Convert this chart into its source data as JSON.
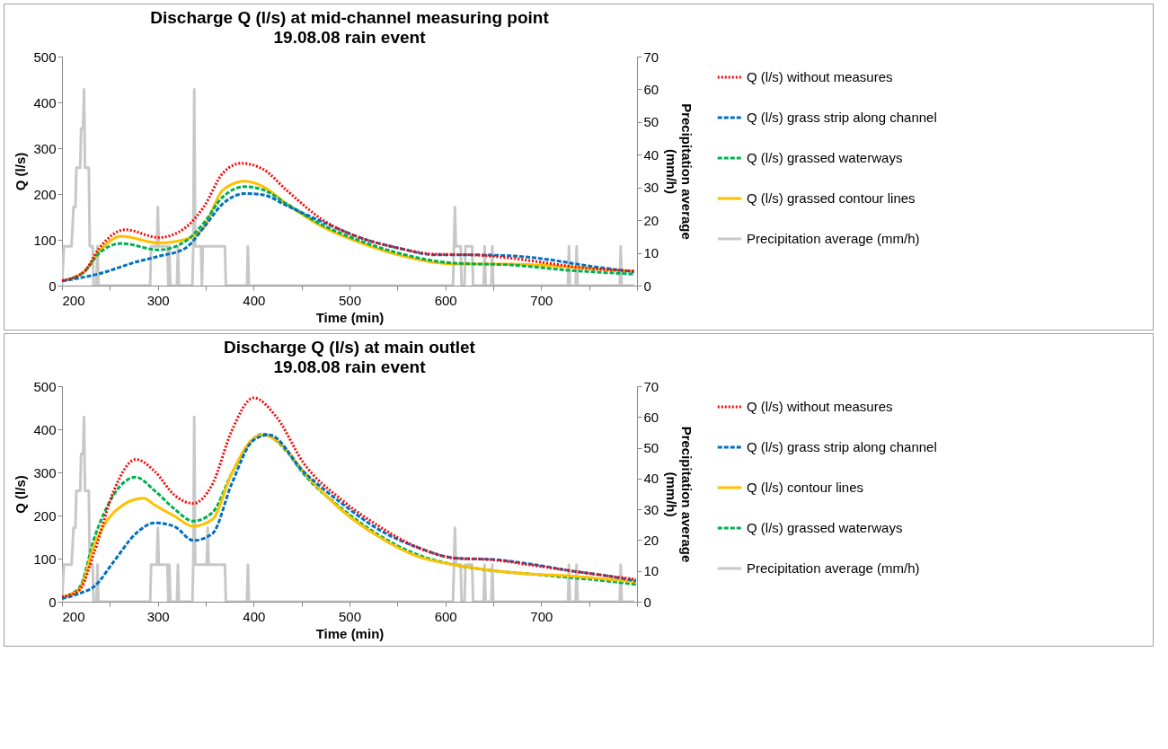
{
  "chart_data": [
    {
      "type": "line",
      "title": "Discharge Q (l/s) at mid-channel measuring point",
      "subtitle": "19.08.08 rain event",
      "xlabel": "Time (min)",
      "ylabel": "Q (l/s)",
      "y2label": "Precipitation average (mm/h)",
      "xlim": [
        200,
        800
      ],
      "xticks": [
        200,
        {
          "value": 250,
          "label": null
        },
        300,
        {
          "value": 350,
          "label": null
        },
        400,
        {
          "value": 450,
          "label": null
        },
        500,
        {
          "value": 550,
          "label": null
        },
        600,
        {
          "value": 650,
          "label": null
        },
        700,
        {
          "value": 750,
          "label": null
        },
        {
          "value": 800,
          "label": null
        }
      ],
      "ylim": [
        0,
        500
      ],
      "yticks": [
        0,
        100,
        200,
        300,
        400,
        500
      ],
      "y2lim": [
        0,
        70
      ],
      "y2ticks": [
        0,
        10,
        20,
        30,
        40,
        50,
        60,
        70
      ],
      "legend": "right",
      "grid": false,
      "series": [
        {
          "name": "Q (l/s) without measures",
          "color": "#ff0000",
          "line_style": "dotted",
          "x": [
            200,
            223,
            239,
            266,
            301,
            329,
            348,
            368,
            387,
            410,
            434,
            473,
            512,
            551,
            586,
            629,
            668,
            707,
            746,
            797
          ],
          "values": [
            11,
            30,
            82,
            122,
            105,
            127,
            172,
            246,
            267,
            254,
            209,
            142,
            104,
            82,
            69,
            67,
            60,
            49,
            38,
            32
          ]
        },
        {
          "name": "Q (l/s) grass strip along channel",
          "color": "#0070c0",
          "line_style": "dashed",
          "x": [
            200,
            239,
            278,
            301,
            329,
            348,
            368,
            391,
            410,
            434,
            473,
            512,
            551,
            590,
            629,
            668,
            707,
            746,
            797
          ],
          "values": [
            10,
            26,
            52,
            64,
            82,
            127,
            179,
            201,
            198,
            175,
            138,
            104,
            82,
            67,
            67,
            65,
            57,
            44,
            30
          ]
        },
        {
          "name": "Q (l/s) grassed waterways",
          "color": "#00b050",
          "line_style": "dashed",
          "x": [
            200,
            223,
            239,
            262,
            301,
            329,
            348,
            368,
            391,
            410,
            434,
            473,
            512,
            551,
            609,
            668,
            726,
            797
          ],
          "values": [
            10,
            30,
            71,
            92,
            78,
            97,
            137,
            194,
            216,
            209,
            179,
            131,
            97,
            71,
            49,
            45,
            34,
            25
          ]
        },
        {
          "name": "Q (l/s) grassed contour lines",
          "color": "#ffc000",
          "line_style": "solid",
          "x": [
            200,
            223,
            239,
            262,
            301,
            329,
            348,
            368,
            391,
            410,
            434,
            473,
            512,
            551,
            609,
            668,
            726,
            797
          ],
          "values": [
            10,
            30,
            75,
            108,
            93,
            101,
            127,
            209,
            228,
            216,
            179,
            127,
            93,
            67,
            47,
            47,
            41,
            31
          ]
        },
        {
          "name": "Precipitation average (mm/h)",
          "color": "#c8c8c8",
          "line_style": "solid",
          "axis": "y2",
          "x": [
            200,
            202,
            210,
            212,
            214,
            215,
            219,
            220,
            222,
            223,
            224,
            228,
            229,
            232,
            233,
            236,
            237,
            238,
            292,
            293,
            299,
            300,
            301,
            310,
            311,
            312,
            313,
            320,
            321,
            322,
            336,
            337,
            338,
            339,
            345,
            346,
            347,
            370,
            371,
            393,
            394,
            395,
            608,
            609,
            610,
            611,
            616,
            617,
            620,
            621,
            628,
            629,
            640,
            641,
            642,
            648,
            649,
            650,
            728,
            729,
            730,
            736,
            737,
            738,
            782,
            783,
            784,
            797
          ],
          "values": [
            0,
            12,
            12,
            24,
            24,
            36,
            36,
            48,
            48,
            60,
            36,
            36,
            12,
            12,
            0,
            0,
            12,
            0,
            0,
            12,
            12,
            24,
            12,
            12,
            0,
            12,
            0,
            0,
            12,
            0,
            0,
            12,
            60,
            12,
            12,
            0,
            12,
            12,
            0,
            0,
            12,
            0,
            0,
            12,
            24,
            12,
            12,
            0,
            0,
            12,
            12,
            0,
            0,
            12,
            0,
            0,
            12,
            0,
            0,
            12,
            0,
            0,
            12,
            0,
            0,
            12,
            0,
            0
          ]
        }
      ]
    },
    {
      "type": "line",
      "title": "Discharge Q (l/s) at main outlet",
      "subtitle": "19.08.08 rain event",
      "xlabel": "Time (min)",
      "ylabel": "Q (l/s)",
      "y2label": "Precipitation average (mm/h)",
      "xlim": [
        200,
        800
      ],
      "xticks": [
        200,
        {
          "value": 250,
          "label": null
        },
        300,
        {
          "value": 350,
          "label": null
        },
        400,
        {
          "value": 450,
          "label": null
        },
        500,
        {
          "value": 550,
          "label": null
        },
        600,
        {
          "value": 650,
          "label": null
        },
        700,
        {
          "value": 750,
          "label": null
        },
        {
          "value": 800,
          "label": null
        }
      ],
      "ylim": [
        0,
        500
      ],
      "yticks": [
        0,
        100,
        200,
        300,
        400,
        500
      ],
      "y2lim": [
        0,
        70
      ],
      "y2ticks": [
        0,
        10,
        20,
        30,
        40,
        50,
        60,
        70
      ],
      "legend": "right",
      "grid": false,
      "series": [
        {
          "name": "Q (l/s) without measures",
          "color": "#ff0000",
          "line_style": "dotted",
          "x": [
            200,
            218,
            234,
            254,
            277,
            297,
            317,
            337,
            357,
            377,
            400,
            424,
            452,
            492,
            531,
            571,
            611,
            650,
            690,
            730,
            769,
            799
          ],
          "values": [
            11,
            27,
            117,
            257,
            330,
            302,
            248,
            228,
            273,
            396,
            473,
            428,
            322,
            236,
            175,
            126,
            101,
            97,
            85,
            72,
            60,
            52
          ]
        },
        {
          "name": "Q (l/s) grass strip along channel",
          "color": "#0070c0",
          "line_style": "dashed",
          "x": [
            200,
            218,
            234,
            254,
            277,
            297,
            317,
            337,
            357,
            377,
            400,
            416,
            452,
            492,
            531,
            571,
            611,
            650,
            690,
            730,
            769,
            799
          ],
          "values": [
            7,
            19,
            36,
            93,
            158,
            183,
            175,
            142,
            158,
            273,
            375,
            387,
            302,
            228,
            167,
            126,
            101,
            98,
            87,
            72,
            60,
            48
          ]
        },
        {
          "name": "Q (l/s) contour lines",
          "color": "#ffc000",
          "line_style": "solid",
          "x": [
            200,
            218,
            234,
            254,
            285,
            297,
            317,
            337,
            357,
            377,
            400,
            410,
            432,
            452,
            492,
            531,
            571,
            611,
            650,
            690,
            730,
            769,
            799
          ],
          "values": [
            11,
            27,
            133,
            207,
            240,
            224,
            199,
            175,
            191,
            297,
            379,
            387,
            358,
            302,
            212,
            150,
            105,
            85,
            72,
            64,
            60,
            52,
            46
          ]
        },
        {
          "name": "Q (l/s) grassed waterways",
          "color": "#00b050",
          "line_style": "dashed",
          "x": [
            200,
            218,
            234,
            254,
            277,
            297,
            317,
            337,
            357,
            377,
            400,
            410,
            432,
            452,
            492,
            531,
            571,
            611,
            650,
            690,
            730,
            769,
            799
          ],
          "values": [
            11,
            32,
            150,
            248,
            289,
            257,
            216,
            187,
            207,
            297,
            379,
            389,
            355,
            297,
            216,
            154,
            109,
            85,
            72,
            64,
            56,
            48,
            40
          ]
        },
        {
          "name": "Precipitation average (mm/h)",
          "color": "#c8c8c8",
          "line_style": "solid",
          "axis": "y2",
          "x": [
            200,
            202,
            210,
            212,
            214,
            215,
            219,
            220,
            222,
            223,
            224,
            228,
            229,
            232,
            233,
            236,
            237,
            238,
            292,
            293,
            299,
            300,
            301,
            310,
            311,
            312,
            313,
            320,
            321,
            322,
            336,
            337,
            338,
            339,
            345,
            346,
            351,
            352,
            353,
            370,
            371,
            393,
            394,
            395,
            608,
            609,
            610,
            611,
            616,
            617,
            620,
            621,
            628,
            629,
            640,
            641,
            642,
            648,
            649,
            650,
            728,
            729,
            730,
            736,
            737,
            738,
            782,
            783,
            784,
            797
          ],
          "values": [
            0,
            12,
            12,
            24,
            24,
            36,
            36,
            48,
            48,
            60,
            36,
            36,
            12,
            12,
            0,
            0,
            12,
            0,
            0,
            12,
            12,
            24,
            12,
            12,
            0,
            12,
            0,
            0,
            12,
            0,
            0,
            12,
            60,
            12,
            12,
            12,
            12,
            24,
            12,
            12,
            0,
            0,
            12,
            0,
            0,
            12,
            24,
            12,
            12,
            0,
            0,
            12,
            12,
            0,
            0,
            12,
            0,
            0,
            12,
            0,
            0,
            12,
            0,
            0,
            12,
            0,
            0,
            12,
            0,
            0
          ]
        }
      ]
    }
  ]
}
